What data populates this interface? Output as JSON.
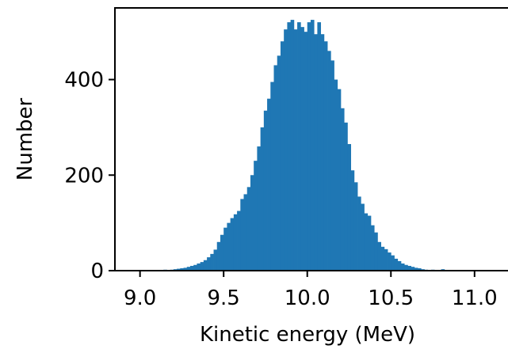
{
  "chart_data": {
    "type": "bar",
    "title": "",
    "xlabel": "Kinetic energy (MeV)",
    "ylabel": "Number",
    "xlim": [
      8.85,
      11.2
    ],
    "ylim": [
      0,
      550
    ],
    "x_ticks": [
      9.0,
      9.5,
      10.0,
      10.5,
      11.0
    ],
    "x_tick_labels": [
      "9.0",
      "9.5",
      "10.0",
      "10.5",
      "11.0"
    ],
    "y_ticks": [
      0,
      200,
      400
    ],
    "y_tick_labels": [
      "0",
      "200",
      "400"
    ],
    "grid": false,
    "legend": "none",
    "bar_color": "#1f77b4",
    "bin_width": 0.02,
    "bin_starts": [
      9.1,
      9.12,
      9.14,
      9.16,
      9.18,
      9.2,
      9.22,
      9.24,
      9.26,
      9.28,
      9.3,
      9.32,
      9.34,
      9.36,
      9.38,
      9.4,
      9.42,
      9.44,
      9.46,
      9.48,
      9.5,
      9.52,
      9.54,
      9.56,
      9.58,
      9.6,
      9.62,
      9.64,
      9.66,
      9.68,
      9.7,
      9.72,
      9.74,
      9.76,
      9.78,
      9.8,
      9.82,
      9.84,
      9.86,
      9.88,
      9.9,
      9.92,
      9.94,
      9.96,
      9.98,
      10.0,
      10.02,
      10.04,
      10.06,
      10.08,
      10.1,
      10.12,
      10.14,
      10.16,
      10.18,
      10.2,
      10.22,
      10.24,
      10.26,
      10.28,
      10.3,
      10.32,
      10.34,
      10.36,
      10.38,
      10.4,
      10.42,
      10.44,
      10.46,
      10.48,
      10.5,
      10.52,
      10.54,
      10.56,
      10.58,
      10.6,
      10.62,
      10.64,
      10.66,
      10.68,
      10.7,
      10.72,
      10.74,
      10.76,
      10.78,
      10.8,
      10.82
    ],
    "counts": [
      1,
      0,
      2,
      1,
      2,
      3,
      4,
      5,
      6,
      8,
      10,
      12,
      15,
      18,
      22,
      28,
      35,
      44,
      60,
      75,
      90,
      100,
      110,
      118,
      125,
      150,
      160,
      175,
      200,
      230,
      260,
      300,
      335,
      360,
      395,
      430,
      450,
      480,
      505,
      520,
      525,
      505,
      520,
      510,
      500,
      520,
      525,
      495,
      520,
      495,
      480,
      460,
      440,
      400,
      380,
      340,
      310,
      265,
      210,
      185,
      155,
      140,
      120,
      115,
      95,
      80,
      60,
      50,
      45,
      38,
      32,
      25,
      20,
      15,
      12,
      10,
      8,
      6,
      5,
      3,
      2,
      1,
      2,
      1,
      0,
      3,
      1
    ]
  }
}
